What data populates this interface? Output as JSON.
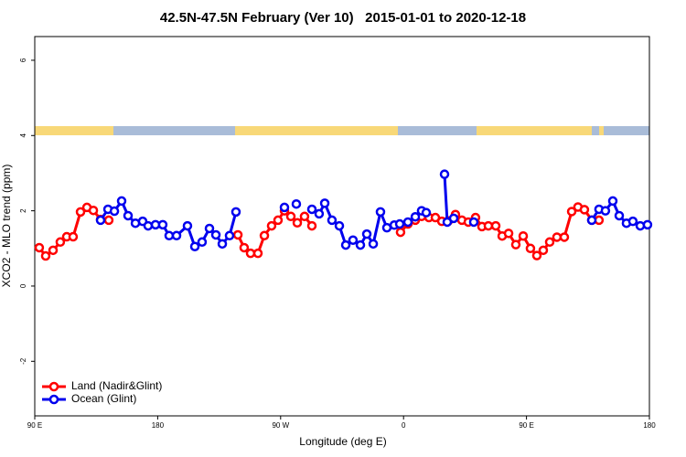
{
  "chart_data": {
    "type": "line",
    "title": "42.5N-47.5N February (Ver 10)   2015-01-01 to 2020-12-18",
    "x_label": "Longitude (deg E)",
    "y_label": "XCO2 - MLO trend (ppm)",
    "xlim": [
      90,
      540
    ],
    "xticks": [
      {
        "value": 90,
        "label": "90 E"
      },
      180,
      {
        "value": 270,
        "label": "90 W"
      },
      {
        "value": 360,
        "label": "0"
      },
      {
        "value": 450,
        "label": "90 E"
      },
      {
        "value": 540,
        "label": "180"
      }
    ],
    "ylim": [
      -3.45,
      6.63
    ],
    "yticks": [
      -2,
      0,
      2,
      4,
      6
    ],
    "legend": "bottom-left",
    "series": [
      {
        "name": "Land (Nadir&Glint)",
        "color": "#ff0000",
        "x": [
          93.3,
          98.0,
          103.4,
          108.7,
          113.4,
          118.1,
          123.5,
          128.2,
          132.9,
          138.2,
          141,
          144.2,
          200,
          238.7,
          243.3,
          248.0,
          253.4,
          258.1,
          263.4,
          268.1,
          272.8,
          277.5,
          282.2,
          287.5,
          292.9,
          330,
          357.8,
          363.2,
          368.6,
          373.2,
          378.6,
          383.3,
          388.0,
          392.7,
          398.0,
          402.7,
          407.4,
          412.7,
          417.4,
          422.1,
          427.5,
          432.2,
          436.9,
          442.2,
          447.6,
          452.9,
          457.6,
          462.3,
          467.0,
          472.3,
          477.7,
          483.1,
          487.7,
          492.4,
          497.8,
          500,
          503.1
        ],
        "values": [
          1.02,
          0.8,
          0.95,
          1.17,
          1.31,
          1.31,
          1.97,
          2.09,
          2.01,
          1.77,
          null,
          1.75,
          null,
          1.36,
          1.02,
          0.87,
          0.87,
          1.34,
          1.6,
          1.75,
          2.0,
          1.85,
          1.68,
          1.85,
          1.6,
          null,
          1.43,
          1.65,
          1.75,
          1.85,
          1.82,
          1.82,
          1.72,
          1.73,
          1.9,
          1.75,
          1.7,
          1.82,
          1.58,
          1.6,
          1.6,
          1.33,
          1.4,
          1.1,
          1.33,
          1.0,
          0.81,
          0.95,
          1.17,
          1.3,
          1.3,
          1.98,
          2.1,
          2.03,
          1.75,
          null,
          1.75
        ]
      },
      {
        "name": "Ocean (Glint)",
        "color": "#0000ee",
        "x": [
          138.2,
          143.6,
          148.3,
          153.6,
          158.3,
          163.7,
          169.0,
          173.0,
          178.4,
          183.7,
          188.4,
          193.8,
          201.8,
          207.2,
          212.5,
          217.9,
          222.6,
          227.3,
          232.6,
          237.3,
          255,
          272.8,
          277,
          281.5,
          285,
          292.9,
          298.2,
          302.3,
          307.6,
          313.0,
          317.7,
          323.0,
          328.4,
          333.1,
          337.8,
          343.1,
          347.8,
          353.2,
          357.2,
          363.2,
          368.6,
          373.2,
          376.6,
          385,
          390.0,
          392.0,
          396.7,
          405,
          411.4,
          450,
          497.8,
          503.1,
          507.8,
          513.2,
          517.9,
          523.2,
          527.9,
          533.3,
          538.6
        ],
        "values": [
          1.75,
          2.04,
          1.99,
          2.26,
          1.87,
          1.67,
          1.72,
          1.6,
          1.63,
          1.63,
          1.34,
          1.34,
          1.6,
          1.05,
          1.17,
          1.53,
          1.36,
          1.12,
          1.34,
          1.97,
          null,
          2.09,
          null,
          2.18,
          null,
          2.04,
          1.92,
          2.2,
          1.75,
          1.6,
          1.09,
          1.22,
          1.09,
          1.38,
          1.12,
          1.97,
          1.55,
          1.62,
          1.65,
          1.7,
          1.84,
          2.0,
          1.95,
          null,
          2.97,
          1.7,
          1.8,
          null,
          1.7,
          null,
          1.75,
          2.04,
          2.0,
          2.26,
          1.87,
          1.67,
          1.72,
          1.6,
          1.63
        ]
      }
    ]
  }
}
